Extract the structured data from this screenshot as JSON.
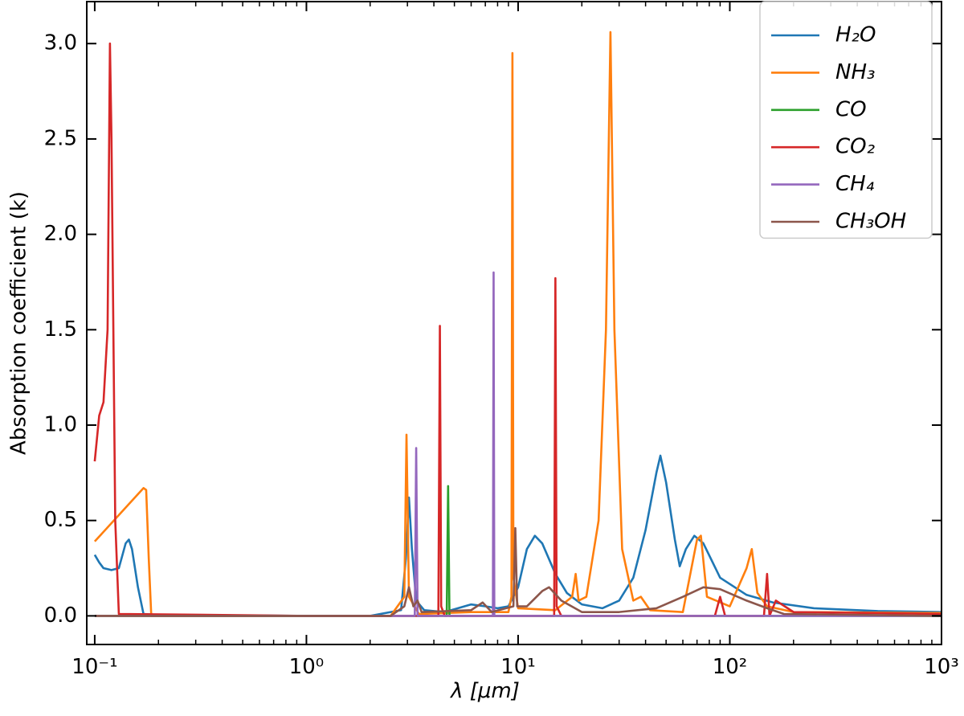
{
  "chart_data": {
    "type": "line",
    "xlabel": "λ [μm]",
    "ylabel": "Absorption coefficient (k)",
    "xscale": "log",
    "xlim": [
      0.0917,
      1000
    ],
    "ylim": [
      -0.15,
      3.22
    ],
    "xticks": [
      {
        "value": 0.1,
        "label": "10⁻¹"
      },
      {
        "value": 1,
        "label": "10⁰"
      },
      {
        "value": 10,
        "label": "10¹"
      },
      {
        "value": 100,
        "label": "10²"
      },
      {
        "value": 1000,
        "label": "10³"
      }
    ],
    "yticks": [
      {
        "value": 0,
        "label": "0.0"
      },
      0.5,
      {
        "value": 1,
        "label": "1.0"
      },
      1.5,
      {
        "value": 2,
        "label": "2.0"
      },
      2.5,
      {
        "value": 3,
        "label": "3.0"
      }
    ],
    "legend": "upper right",
    "series": [
      {
        "name": "H₂O",
        "color": "#1f77b4",
        "x": [
          0.1,
          0.105,
          0.11,
          0.12,
          0.13,
          0.14,
          0.145,
          0.15,
          0.16,
          0.17,
          0.2,
          1,
          2,
          2.8,
          2.95,
          3.05,
          3.15,
          3.3,
          3.6,
          4.5,
          6,
          7,
          8,
          9,
          10,
          11,
          12,
          13,
          15,
          17,
          20,
          25,
          30,
          35,
          40,
          45,
          47,
          50,
          55,
          58,
          62,
          68,
          75,
          90,
          120,
          160,
          250,
          500,
          1000
        ],
        "values": [
          0.32,
          0.28,
          0.25,
          0.24,
          0.25,
          0.38,
          0.4,
          0.35,
          0.15,
          0.01,
          0.005,
          0,
          0,
          0.03,
          0.3,
          0.62,
          0.35,
          0.08,
          0.03,
          0.02,
          0.06,
          0.05,
          0.04,
          0.05,
          0.15,
          0.35,
          0.42,
          0.38,
          0.22,
          0.12,
          0.06,
          0.04,
          0.08,
          0.2,
          0.45,
          0.75,
          0.84,
          0.7,
          0.4,
          0.26,
          0.35,
          0.42,
          0.38,
          0.2,
          0.11,
          0.07,
          0.04,
          0.025,
          0.02
        ]
      },
      {
        "name": "NH₃",
        "color": "#ff7f0e",
        "x": [
          0.1,
          0.17,
          0.175,
          0.18,
          0.185,
          1,
          2.5,
          2.9,
          2.97,
          3.05,
          3.4,
          6,
          9,
          9.3,
          9.4,
          9.5,
          10,
          15,
          18,
          18.7,
          19.3,
          21,
          24,
          26,
          27.3,
          28.5,
          31,
          35,
          38,
          42,
          60,
          70,
          73,
          78,
          100,
          120,
          127,
          135,
          150,
          200,
          1000
        ],
        "values": [
          0.39,
          0.67,
          0.66,
          0.3,
          0,
          0,
          0,
          0.1,
          0.95,
          0.1,
          0.01,
          0.02,
          0.02,
          0.1,
          2.95,
          0.2,
          0.04,
          0.03,
          0.1,
          0.22,
          0.08,
          0.1,
          0.5,
          1.5,
          3.06,
          1.5,
          0.35,
          0.08,
          0.1,
          0.03,
          0.02,
          0.4,
          0.42,
          0.1,
          0.05,
          0.25,
          0.35,
          0.12,
          0.05,
          0.02,
          0.015
        ]
      },
      {
        "name": "CO",
        "color": "#2ca02c",
        "x": [
          0.1,
          4.6,
          4.67,
          4.74,
          1000
        ],
        "values": [
          0,
          0,
          0.68,
          0,
          0
        ]
      },
      {
        "name": "CO₂",
        "color": "#d62728",
        "x": [
          0.1,
          0.105,
          0.11,
          0.115,
          0.118,
          0.12,
          0.125,
          0.13,
          1,
          4.2,
          4.27,
          4.33,
          4.5,
          14.8,
          15,
          15.2,
          16,
          85,
          90,
          95,
          145,
          150,
          154,
          165,
          200,
          1000
        ],
        "values": [
          0.81,
          1.05,
          1.12,
          1.5,
          3.0,
          2.5,
          0.5,
          0.01,
          0,
          0,
          1.52,
          0.05,
          0,
          0,
          1.77,
          0.05,
          0,
          0,
          0.1,
          0,
          0,
          0.22,
          0,
          0.08,
          0.02,
          0.01
        ]
      },
      {
        "name": "CH₄",
        "color": "#9467bd",
        "x": [
          0.1,
          3.25,
          3.3,
          3.35,
          7.6,
          7.66,
          7.72,
          1000
        ],
        "values": [
          0,
          0,
          0.88,
          0,
          0,
          1.8,
          0,
          0
        ]
      },
      {
        "name": "CH₃OH",
        "color": "#8c564b",
        "x": [
          0.1,
          0.5,
          2.5,
          2.9,
          3.05,
          3.2,
          3.35,
          3.5,
          6,
          6.8,
          7.5,
          9.5,
          9.7,
          9.9,
          11,
          13,
          14,
          16,
          20,
          30,
          45,
          60,
          75,
          90,
          120,
          150,
          180,
          1000
        ],
        "values": [
          0,
          0,
          0,
          0.05,
          0.15,
          0.05,
          0.08,
          0.02,
          0.03,
          0.07,
          0.02,
          0.05,
          0.46,
          0.05,
          0.05,
          0.13,
          0.15,
          0.08,
          0.02,
          0.02,
          0.04,
          0.1,
          0.15,
          0.14,
          0.08,
          0.04,
          0.01,
          0
        ]
      }
    ]
  }
}
